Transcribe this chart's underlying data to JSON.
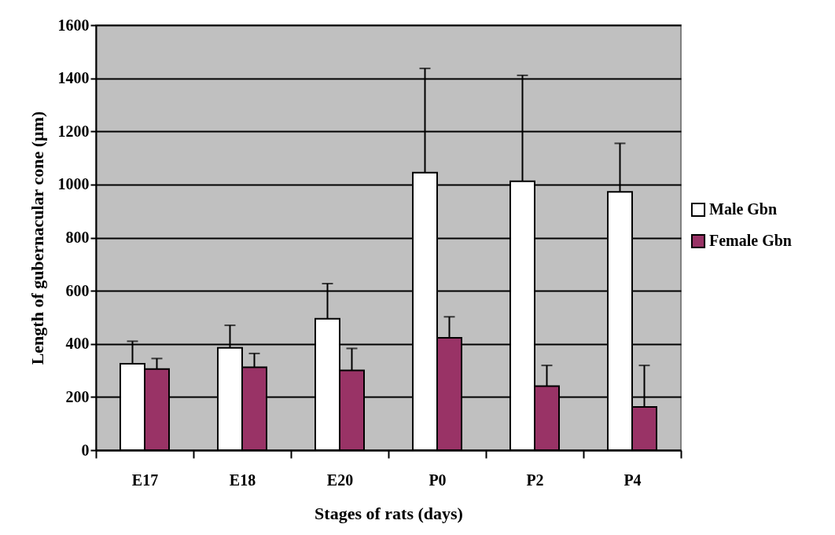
{
  "chart_data": {
    "type": "bar",
    "xlabel": "Stages of rats (days)",
    "ylabel": "Length of gubernacular cone (µm)",
    "categories": [
      "E17",
      "E18",
      "E20",
      "P0",
      "P2",
      "P4"
    ],
    "series": [
      {
        "name": "Male Gbn",
        "color": "#ffffff",
        "values": [
          325,
          385,
          495,
          1045,
          1012,
          972
        ],
        "errors": [
          [
            325,
            410
          ],
          [
            385,
            470
          ],
          [
            495,
            627
          ],
          [
            1045,
            1437
          ],
          [
            1012,
            1411
          ],
          [
            972,
            1155
          ]
        ]
      },
      {
        "name": "Female Gbn",
        "color": "#993366",
        "values": [
          305,
          312,
          300,
          423,
          241,
          163
        ],
        "errors": [
          [
            305,
            345
          ],
          [
            312,
            364
          ],
          [
            300,
            383
          ],
          [
            423,
            502
          ],
          [
            241,
            319
          ],
          [
            163,
            319
          ]
        ]
      }
    ],
    "ylim": [
      0,
      1600
    ],
    "yticks": [
      0,
      200,
      400,
      600,
      800,
      1000,
      1200,
      1400,
      1600
    ],
    "grid": "y",
    "legend": "right"
  }
}
